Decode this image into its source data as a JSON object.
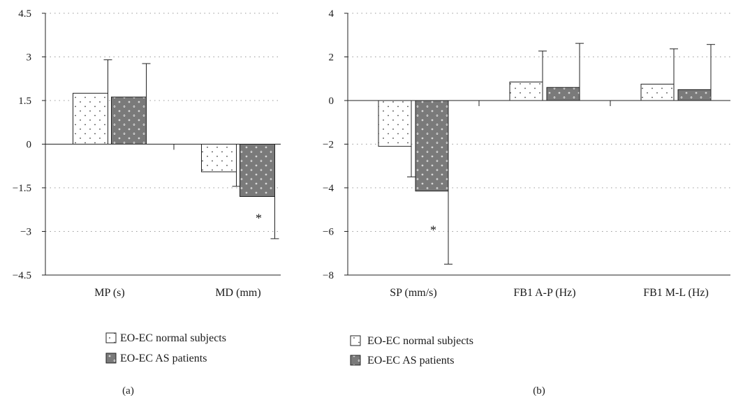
{
  "chart_data": [
    {
      "type": "bar",
      "panel_label": "(a)",
      "categories": [
        "MP (s)",
        "MD (mm)"
      ],
      "ylim": [
        -4.5,
        4.5
      ],
      "yticks": [
        4.5,
        3,
        1.5,
        0,
        -1.5,
        -3,
        -4.5
      ],
      "ytick_labels": [
        "4.5",
        "3",
        "1.5",
        "0",
        "−1.5",
        "−3",
        "−4.5"
      ],
      "grid": "horizontal dotted",
      "series": [
        {
          "name": "EO-EC normal subjects",
          "values": [
            1.75,
            -0.95
          ],
          "errors": [
            1.15,
            0.5
          ],
          "fill": "#ffffff",
          "pattern": "sparse-dots"
        },
        {
          "name": "EO-EC AS patients",
          "values": [
            1.62,
            -1.8
          ],
          "errors": [
            1.15,
            1.45
          ],
          "fill": "#7a7a7a",
          "pattern": "white-dots"
        }
      ],
      "annotations": [
        {
          "category": 1,
          "series": 1,
          "text": "*"
        }
      ],
      "legend": [
        "EO-EC normal subjects",
        "EO-EC AS patients"
      ]
    },
    {
      "type": "bar",
      "panel_label": "(b)",
      "categories": [
        "SP (mm/s)",
        "FB1 A-P (Hz)",
        "FB1 M-L (Hz)"
      ],
      "ylim": [
        -8,
        4
      ],
      "yticks": [
        4,
        2,
        0,
        -2,
        -4,
        -6,
        -8
      ],
      "ytick_labels": [
        "4",
        "2",
        "0",
        "−2",
        "−4",
        "−6",
        "−8"
      ],
      "grid": "horizontal dotted",
      "series": [
        {
          "name": "EO-EC normal subjects",
          "values": [
            -2.1,
            0.85,
            0.75
          ],
          "errors": [
            1.4,
            1.42,
            1.62
          ],
          "fill": "#ffffff",
          "pattern": "sparse-dots"
        },
        {
          "name": "EO-EC AS patients",
          "values": [
            -4.15,
            0.6,
            0.5
          ],
          "errors": [
            3.35,
            2.02,
            2.07
          ],
          "fill": "#7a7a7a",
          "pattern": "white-dots"
        }
      ],
      "annotations": [
        {
          "category": 0,
          "series": 1,
          "text": "*"
        }
      ],
      "legend": [
        "EO-EC normal subjects",
        "EO-EC AS patients"
      ]
    }
  ]
}
